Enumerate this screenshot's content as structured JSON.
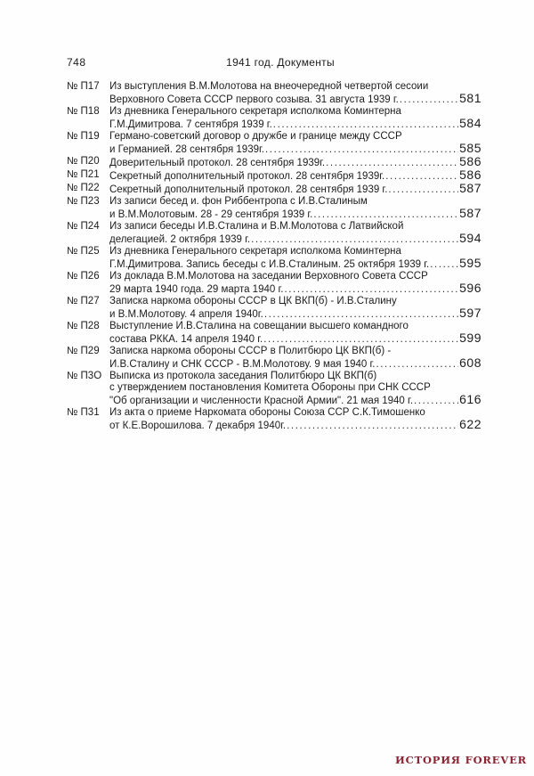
{
  "page_header": {
    "folio": "748",
    "title": "1941 год. Документы"
  },
  "toc": {
    "entries": [
      {
        "label": "№ П17",
        "lines": [
          "Из выступления В.М.Молотова на внеочередной четвертой сесоии"
        ],
        "last": "Верховного Совета СССР первого созыва. 31 августа 1939 г.",
        "page": "581"
      },
      {
        "label": "№ П18",
        "lines": [
          "Из дневника Генерального секретаря исполкома Коминтерна"
        ],
        "last": "Г.М.Димитрова. 7 сентября 1939 г.",
        "page": "584"
      },
      {
        "label": "№ П19",
        "lines": [
          "Германо-советский договор о дружбе и границе между СССР"
        ],
        "last": "и Германией. 28 сентября 1939г.",
        "page": "585"
      },
      {
        "label": "№ П20",
        "lines": [],
        "last": "Доверительный протокол. 28 сентября 1939г.",
        "page": "586"
      },
      {
        "label": "№ П21",
        "lines": [],
        "last": "Секретный дополнительный протокол. 28 сентября 1939г.",
        "page": "586"
      },
      {
        "label": "№ П22",
        "lines": [],
        "last": "Секретный дополнительный протокол. 28 сентября 1939 г.",
        "page": "587"
      },
      {
        "label": "№ П23",
        "lines": [
          "Из записи бесед и. фон Риббентропа с И.В.Сталиным"
        ],
        "last": "и В.М.Молотовым. 28 - 29 сентября 1939 г.",
        "page": "587"
      },
      {
        "label": "№ П24",
        "lines": [
          "Из записи беседы И.В.Сталина и В.М.Молотова с Латвийской"
        ],
        "last": "делегацией. 2 октября 1939 г.",
        "page": "594"
      },
      {
        "label": "№ П25",
        "lines": [
          "Из дневника Генерального секретаря исполкома Коминтерна"
        ],
        "last": "Г.М.Димитрова. Запись беседы с И.В.Сталиным. 25 октября 1939 г.",
        "page": "595"
      },
      {
        "label": "№ П26",
        "lines": [
          "Из доклада В.М.Молотова на заседании Верховного Совета СССР"
        ],
        "last": "29 марта 1940 года. 29 марта 1940 г.",
        "page": "596"
      },
      {
        "label": "№ П27",
        "lines": [
          "Записка наркома обороны СССР в ЦК ВКП(б) - И.В.Сталину"
        ],
        "last": "и В.М.Молотову. 4 апреля 1940г.",
        "page": "597"
      },
      {
        "label": "№ П28",
        "lines": [
          "Выступление И.В.Сталина на совещании высшего командного"
        ],
        "last": "состава РККА. 14 апреля 1940 г.",
        "page": "599"
      },
      {
        "label": "№ П29",
        "lines": [
          "Записка наркома обороны СССР в Политбюро ЦК ВКП(б) -"
        ],
        "last": "И.В.Сталину и СНК СССР - В.М.Молотову. 9 мая 1940 г.",
        "page": "608"
      },
      {
        "label": "№ П3О",
        "lines": [
          "Выписка из протокола заседания Политбюро ЦК ВКП(б)",
          "с утверждением постановления Комитета Обороны при СНК СССР"
        ],
        "last": "\"Об организации и численности Красной Армии\". 21 мая 1940 г.",
        "page": "616"
      },
      {
        "label": "№ П31",
        "lines": [
          "Из акта о приеме Наркомата обороны Союза ССР С.К.Тимошенко"
        ],
        "last": "от К.Е.Ворошилова. 7 декабря 1940г.",
        "page": "622"
      }
    ]
  },
  "watermark": {
    "text": "ИСТОРИЯ FOREVER",
    "color": "#8b2433"
  }
}
